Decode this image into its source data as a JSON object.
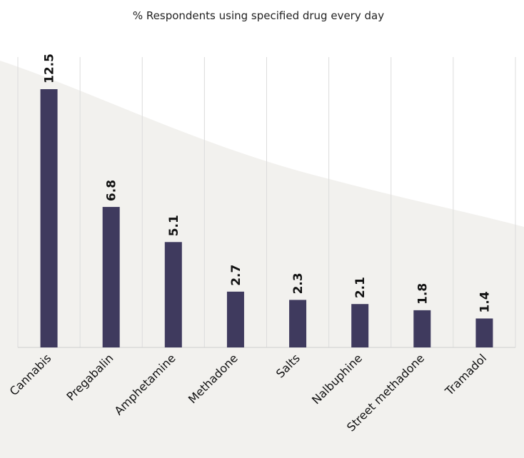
{
  "chart_data": {
    "type": "bar",
    "title": "% Respondents using specified drug every day",
    "xlabel": "",
    "ylabel": "",
    "categories": [
      "Cannabis",
      "Pregabalin",
      "Amphetamine",
      "Methadone",
      "Salts",
      "Nalbuphine",
      "Street methadone",
      "Tramadol"
    ],
    "values": [
      12.5,
      6.8,
      5.1,
      2.7,
      2.3,
      2.1,
      1.8,
      1.4
    ],
    "value_labels": [
      "12.5",
      "6.8",
      "5.1",
      "2.7",
      "2.3",
      "2.1",
      "1.8",
      "1.4"
    ],
    "ylim": [
      0,
      12.5
    ],
    "grid": true,
    "bar_color": "#3f3a5e",
    "background_color": "#f2f1ee",
    "gridline_color": "#dcdcdc"
  }
}
